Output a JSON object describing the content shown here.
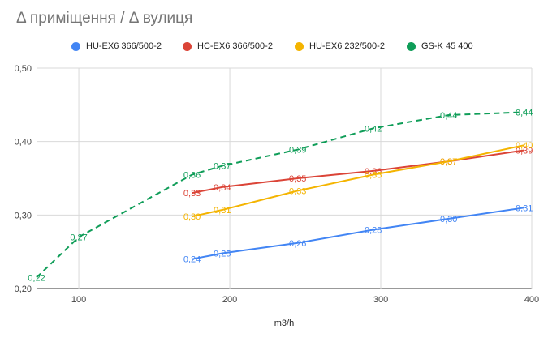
{
  "chart_data": {
    "type": "line",
    "title": "Δ приміщення / Δ вулиця",
    "xlabel": "m3/h",
    "ylabel": "",
    "xlim": [
      72,
      400
    ],
    "ylim": [
      0.2,
      0.5
    ],
    "x_ticks": [
      100,
      200,
      300,
      400
    ],
    "x_tick_labels": [
      "100",
      "200",
      "300",
      "400"
    ],
    "y_ticks": [
      0.2,
      0.3,
      0.4,
      0.5
    ],
    "y_tick_labels": [
      "0,20",
      "0,30",
      "0,40",
      "0,50"
    ],
    "grid": true,
    "legend_position": "top",
    "series": [
      {
        "name": "HU-EX6 366/500-2",
        "color": "#4285f4",
        "dashed": false,
        "x": [
          175,
          195,
          245,
          295,
          345,
          395
        ],
        "y": [
          0.24,
          0.248,
          0.262,
          0.28,
          0.295,
          0.31
        ],
        "labels": [
          "0,24",
          "0,25",
          "0,26",
          "0,28",
          "0,30",
          "0,31"
        ]
      },
      {
        "name": "HC-EX6 366/500-2",
        "color": "#db4437",
        "dashed": false,
        "x": [
          175,
          195,
          245,
          295,
          345,
          395
        ],
        "y": [
          0.33,
          0.338,
          0.35,
          0.36,
          0.373,
          0.388
        ],
        "labels": [
          "0,33",
          "0,34",
          "0,35",
          "0,36",
          "0,37",
          "0,39"
        ]
      },
      {
        "name": "HU-EX6 232/500-2",
        "color": "#f4b400",
        "dashed": false,
        "x": [
          175,
          195,
          245,
          295,
          345,
          395
        ],
        "y": [
          0.298,
          0.307,
          0.333,
          0.355,
          0.373,
          0.395
        ],
        "labels": [
          "0,30",
          "0,31",
          "0,33",
          "0,35",
          "0,37",
          "0,40"
        ]
      },
      {
        "name": "GS-K 45 400",
        "color": "#0f9d58",
        "dashed": true,
        "x": [
          72,
          100,
          175,
          195,
          245,
          295,
          345,
          395
        ],
        "y": [
          0.215,
          0.27,
          0.355,
          0.367,
          0.389,
          0.418,
          0.436,
          0.44
        ],
        "labels": [
          "0,22",
          "0,27",
          "0,36",
          "0,37",
          "0,39",
          "0,42",
          "0,44",
          "0,44"
        ]
      }
    ]
  }
}
